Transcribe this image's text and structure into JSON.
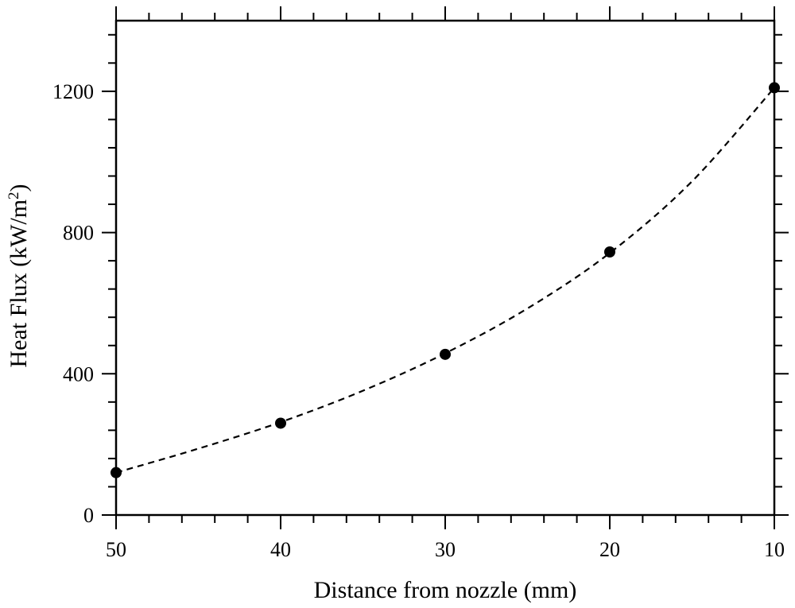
{
  "chart_data": {
    "type": "scatter",
    "title": "",
    "xlabel": "Distance from nozzle (mm)",
    "ylabel": "Heat Flux (kW/m",
    "ylabel_superscript": "2",
    "ylabel_tail": ")",
    "x_reversed": true,
    "xlim": [
      50,
      10
    ],
    "ylim": [
      0,
      1400
    ],
    "x_ticks": [
      50,
      40,
      30,
      20,
      10
    ],
    "x_tick_labels": [
      "50",
      "40",
      "30",
      "20",
      "10"
    ],
    "y_ticks": [
      0,
      400,
      800,
      1200
    ],
    "y_tick_labels": [
      "0",
      "400",
      "800",
      "1200"
    ],
    "x_minor_step": 2,
    "y_minor_step": 80,
    "grid": false,
    "series": [
      {
        "marker": "filled-circle",
        "color": "#000000",
        "x": [
          50,
          40,
          30,
          20,
          10
        ],
        "y": [
          120,
          260,
          455,
          745,
          1210
        ]
      }
    ],
    "fit_curve": {
      "style": "dashed",
      "color": "#000000",
      "x": [
        50,
        45,
        40,
        35,
        30,
        25,
        20,
        15,
        10
      ],
      "y": [
        120,
        188,
        263,
        352,
        458,
        585,
        742,
        945,
        1210
      ]
    }
  }
}
